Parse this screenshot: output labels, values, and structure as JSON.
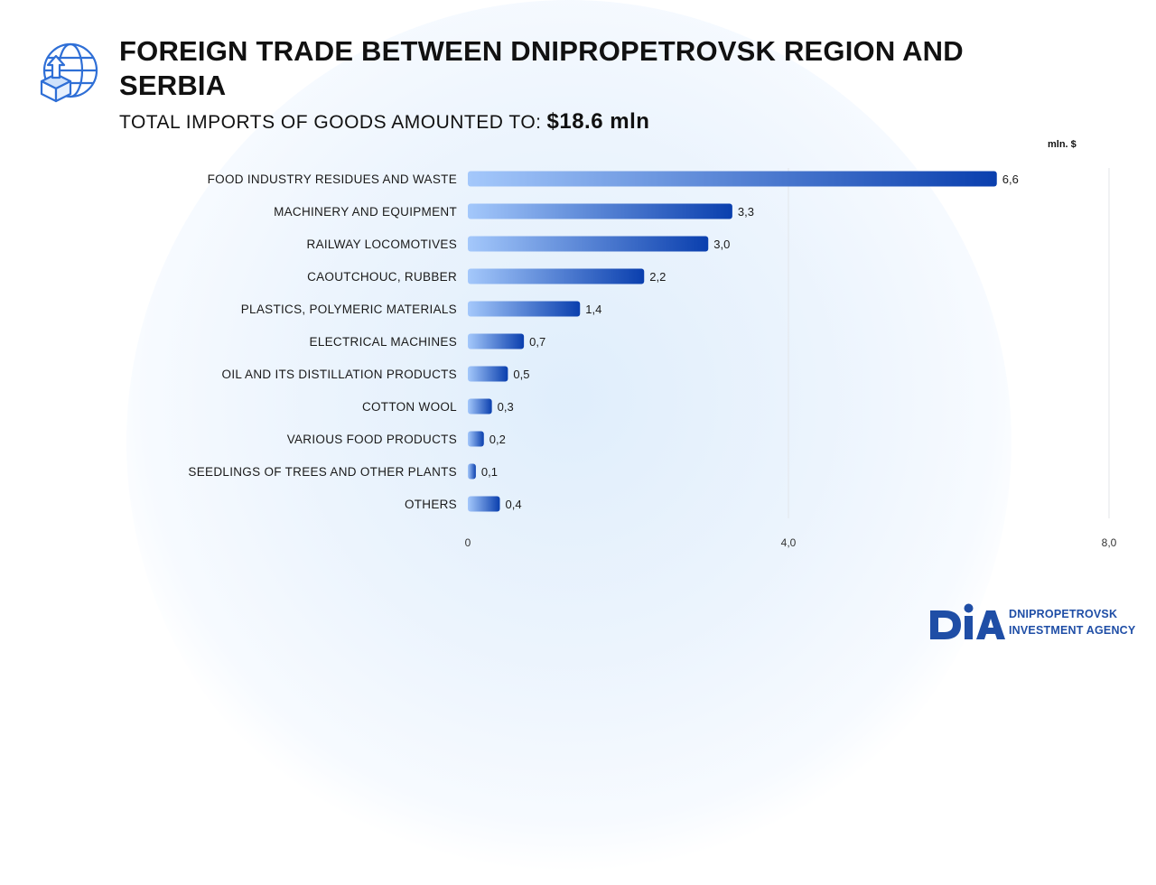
{
  "header": {
    "title": "FOREIGN TRADE BETWEEN DNIPROPETROVSK REGION AND SERBIA",
    "subtitle_label": "TOTAL IMPORTS OF GOODS AMOUNTED TO:",
    "subtitle_value": "$18.6 mln",
    "icon": "globe-box-arrow-icon"
  },
  "chart_data": {
    "type": "bar",
    "orientation": "horizontal",
    "unit_label": "mln. $",
    "categories": [
      "FOOD INDUSTRY RESIDUES AND WASTE",
      "MACHINERY AND EQUIPMENT",
      "RAILWAY LOCOMOTIVES",
      "CAOUTCHOUC, RUBBER",
      "PLASTICS, POLYMERIC MATERIALS",
      "ELECTRICAL MACHINES",
      "OIL AND ITS DISTILLATION PRODUCTS",
      "COTTON WOOL",
      "VARIOUS FOOD PRODUCTS",
      "SEEDLINGS OF TREES AND OTHER PLANTS",
      "OTHERS"
    ],
    "values": [
      6.6,
      3.3,
      3.0,
      2.2,
      1.4,
      0.7,
      0.5,
      0.3,
      0.2,
      0.1,
      0.4
    ],
    "value_labels": [
      "6,6",
      "3,3",
      "3,0",
      "2,2",
      "1,4",
      "0,7",
      "0,5",
      "0,3",
      "0,2",
      "0,1",
      "0,4"
    ],
    "xlim": [
      0,
      8
    ],
    "xticks": [
      0,
      4,
      8
    ],
    "xtick_labels": [
      "0",
      "4,0",
      "8,0"
    ],
    "grid": true,
    "colors": {
      "bar_start": "#a4c8fb",
      "bar_end": "#0a3fae",
      "grid": "#e3e6ea"
    }
  },
  "footer": {
    "logo_mark": "DIA",
    "logo_line1": "DNIPROPETROVSK",
    "logo_line2": "INVESTMENT AGENCY",
    "brand_color": "#1f4ea6"
  }
}
